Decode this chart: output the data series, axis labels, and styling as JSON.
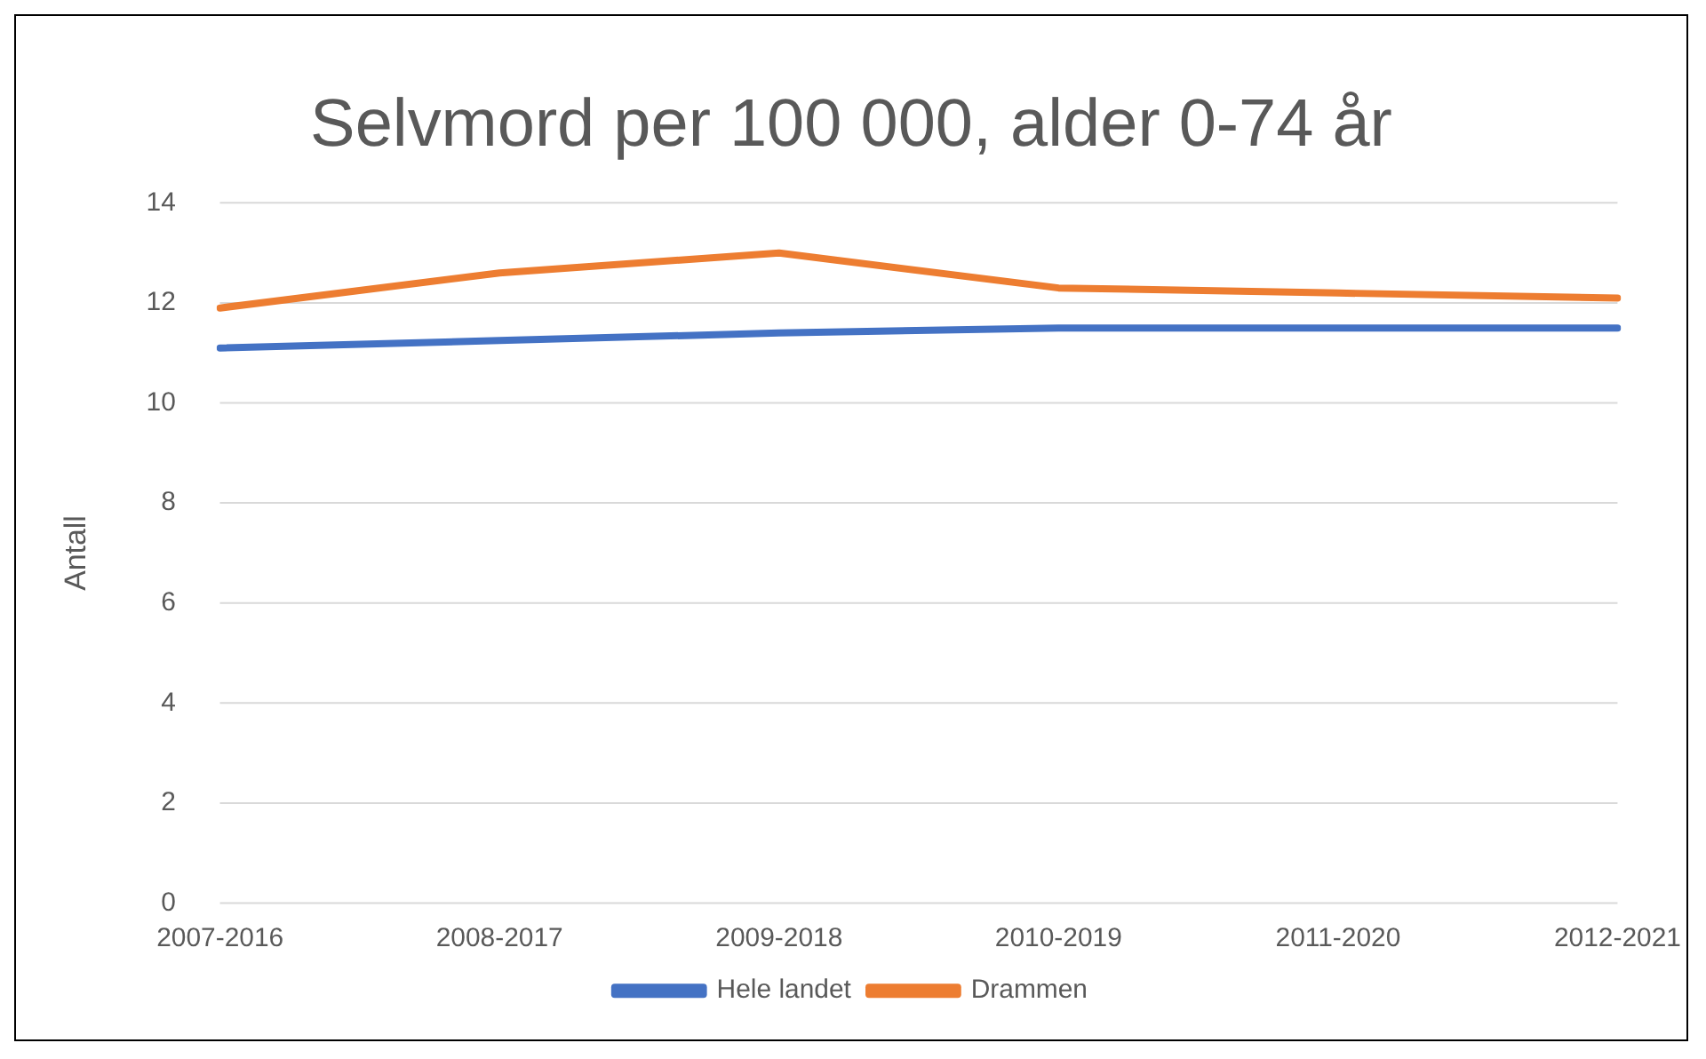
{
  "chart_data": {
    "type": "line",
    "title": "Selvmord per 100 000, alder 0-74 år",
    "ylabel": "Antall",
    "categories": [
      "2007-2016",
      "2008-2017",
      "2009-2018",
      "2010-2019",
      "2011-2020",
      "2012-2021"
    ],
    "series": [
      {
        "name": "Hele landet",
        "color": "#4472c4",
        "values": [
          11.1,
          11.25,
          11.4,
          11.5,
          11.5,
          11.5
        ]
      },
      {
        "name": "Drammen",
        "color": "#ed7d31",
        "values": [
          11.9,
          12.6,
          13.0,
          12.3,
          12.2,
          12.1
        ]
      }
    ],
    "ylim": [
      0,
      14
    ],
    "yticks": [
      0,
      2,
      4,
      6,
      8,
      10,
      12,
      14
    ],
    "grid": "y",
    "legend": "bottom",
    "marker": "none"
  }
}
